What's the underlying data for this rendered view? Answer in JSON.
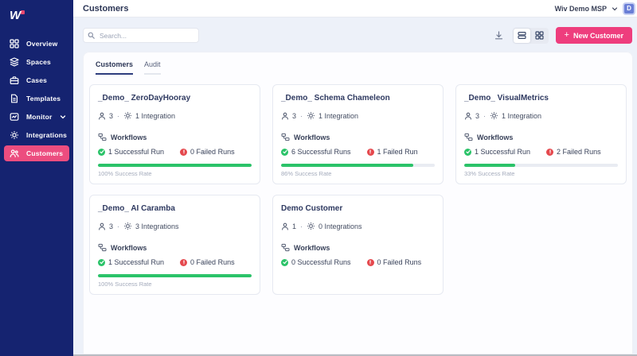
{
  "colors": {
    "sidebar_navy": "#152370",
    "accent_pink": "#ee3d7d",
    "active_pill": "#ec4d7f",
    "success_green": "#2bc369",
    "error_red": "#e5484d",
    "avatar_blue": "#6a7ed6"
  },
  "sidebar": {
    "items": [
      {
        "label": "Overview",
        "active": false
      },
      {
        "label": "Spaces",
        "active": false
      },
      {
        "label": "Cases",
        "active": false
      },
      {
        "label": "Templates",
        "active": false
      },
      {
        "label": "Monitor",
        "active": false,
        "has_chevron": true
      },
      {
        "label": "Integrations",
        "active": false
      },
      {
        "label": "Customers",
        "active": true
      }
    ]
  },
  "header": {
    "title": "Customers",
    "account_name": "Wiv Demo MSP",
    "avatar_initial": "D"
  },
  "toolbar": {
    "search_placeholder": "Search...",
    "new_customer_label": "New Customer"
  },
  "tabs": [
    {
      "label": "Customers",
      "active": true
    },
    {
      "label": "Audit",
      "active": false
    }
  ],
  "cards": [
    {
      "title": "_Demo_ ZeroDayHooray",
      "members": "3",
      "separator": "·",
      "integrations": "1 Integration",
      "workflows_label": "Workflows",
      "successful": "1 Successful Run",
      "failed": "0 Failed Runs",
      "success_rate_pct": 100,
      "success_rate_label": "100% Success Rate"
    },
    {
      "title": "_Demo_ Schema Chameleon",
      "members": "3",
      "separator": "·",
      "integrations": "1 Integration",
      "workflows_label": "Workflows",
      "successful": "6 Successful Runs",
      "failed": "1 Failed Run",
      "success_rate_pct": 86,
      "success_rate_label": "86% Success Rate"
    },
    {
      "title": "_Demo_ VisualMetrics",
      "members": "3",
      "separator": "·",
      "integrations": "1 Integration",
      "workflows_label": "Workflows",
      "successful": "1 Successful Run",
      "failed": "2 Failed Runs",
      "success_rate_pct": 33,
      "success_rate_label": "33% Success Rate"
    },
    {
      "title": "_Demo_ AI Caramba",
      "members": "3",
      "separator": "·",
      "integrations": "3 Integrations",
      "workflows_label": "Workflows",
      "successful": "1 Successful Run",
      "failed": "0 Failed Runs",
      "success_rate_pct": 100,
      "success_rate_label": "100% Success Rate"
    },
    {
      "title": "Demo Customer",
      "members": "1",
      "separator": "·",
      "integrations": "0 Integrations",
      "workflows_label": "Workflows",
      "successful": "0 Successful Runs",
      "failed": "0 Failed Runs",
      "success_rate_pct": null,
      "success_rate_label": null
    }
  ]
}
